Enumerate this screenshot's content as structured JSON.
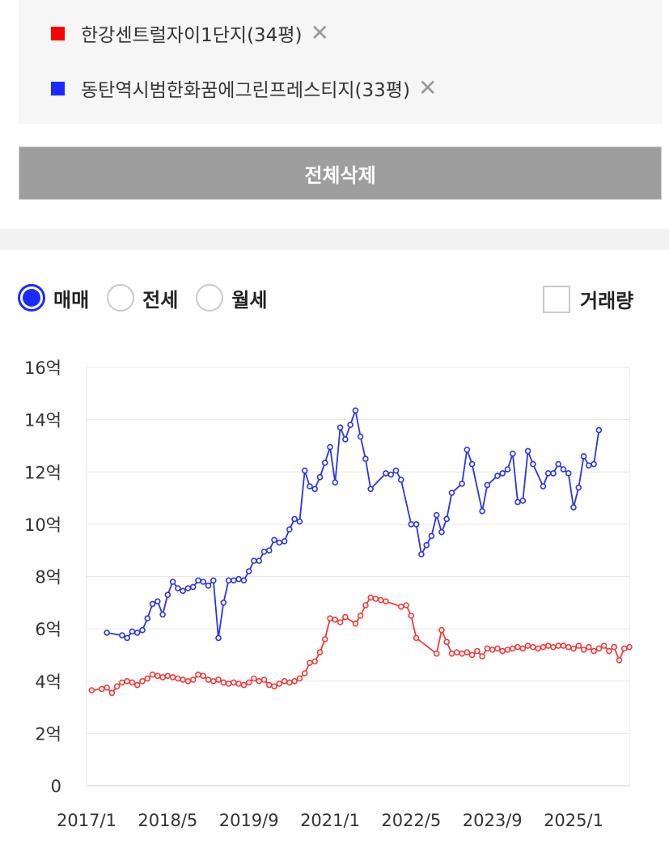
{
  "legend": {
    "items": [
      {
        "label": "한강센트럴자이1단지(34평)",
        "color": "#ff0000",
        "remove_icon": "close-icon",
        "remove_glyph": "✕"
      },
      {
        "label": "동탄역시범한화꿈에그린프레스티지(33평)",
        "color": "#1a2bff",
        "remove_icon": "close-icon",
        "remove_glyph": "✕"
      }
    ]
  },
  "delete_all_label": "전체삭제",
  "trade_types": {
    "options": [
      "매매",
      "전세",
      "월세"
    ],
    "selected": "매매"
  },
  "volume_label": "거래량",
  "volume_checked": false,
  "chart_data": {
    "type": "line",
    "title": "",
    "xlabel": "",
    "ylabel": "",
    "x_ticks": [
      "2017/1",
      "2018/5",
      "2019/9",
      "2021/1",
      "2022/5",
      "2023/9",
      "2025/1"
    ],
    "x_range": [
      "2017-01",
      "2025-12"
    ],
    "y_ticks": [
      "0",
      "2억",
      "4억",
      "6억",
      "8억",
      "10억",
      "12억",
      "14억",
      "16억"
    ],
    "ylim": [
      0,
      16
    ],
    "y_unit": "억",
    "grid": true,
    "series": [
      {
        "name": "한강센트럴자이1단지(34평)",
        "color": "#ef3b3b",
        "points": [
          [
            "2017-02",
            3.65
          ],
          [
            "2017-04",
            3.7
          ],
          [
            "2017-05",
            3.75
          ],
          [
            "2017-06",
            3.55
          ],
          [
            "2017-07",
            3.8
          ],
          [
            "2017-08",
            3.95
          ],
          [
            "2017-09",
            4.0
          ],
          [
            "2017-10",
            3.95
          ],
          [
            "2017-11",
            3.85
          ],
          [
            "2017-12",
            4.0
          ],
          [
            "2018-01",
            4.1
          ],
          [
            "2018-02",
            4.25
          ],
          [
            "2018-03",
            4.2
          ],
          [
            "2018-04",
            4.15
          ],
          [
            "2018-05",
            4.2
          ],
          [
            "2018-06",
            4.15
          ],
          [
            "2018-07",
            4.1
          ],
          [
            "2018-08",
            4.05
          ],
          [
            "2018-09",
            4.0
          ],
          [
            "2018-10",
            4.05
          ],
          [
            "2018-11",
            4.25
          ],
          [
            "2018-12",
            4.2
          ],
          [
            "2019-01",
            4.05
          ],
          [
            "2019-02",
            4.0
          ],
          [
            "2019-03",
            4.05
          ],
          [
            "2019-04",
            3.95
          ],
          [
            "2019-05",
            3.9
          ],
          [
            "2019-06",
            3.95
          ],
          [
            "2019-07",
            3.9
          ],
          [
            "2019-08",
            3.85
          ],
          [
            "2019-09",
            3.95
          ],
          [
            "2019-10",
            4.1
          ],
          [
            "2019-11",
            4.0
          ],
          [
            "2019-12",
            4.05
          ],
          [
            "2020-01",
            3.85
          ],
          [
            "2020-02",
            3.8
          ],
          [
            "2020-03",
            3.9
          ],
          [
            "2020-04",
            4.0
          ],
          [
            "2020-05",
            3.95
          ],
          [
            "2020-06",
            4.0
          ],
          [
            "2020-07",
            4.1
          ],
          [
            "2020-08",
            4.3
          ],
          [
            "2020-09",
            4.7
          ],
          [
            "2020-10",
            4.75
          ],
          [
            "2020-11",
            5.1
          ],
          [
            "2020-12",
            5.6
          ],
          [
            "2021-01",
            6.4
          ],
          [
            "2021-02",
            6.35
          ],
          [
            "2021-03",
            6.25
          ],
          [
            "2021-04",
            6.45
          ],
          [
            "2021-06",
            6.2
          ],
          [
            "2021-07",
            6.5
          ],
          [
            "2021-08",
            6.9
          ],
          [
            "2021-09",
            7.2
          ],
          [
            "2021-10",
            7.15
          ],
          [
            "2021-11",
            7.1
          ],
          [
            "2021-12",
            7.05
          ],
          [
            "2022-03",
            6.85
          ],
          [
            "2022-04",
            6.9
          ],
          [
            "2022-05",
            6.5
          ],
          [
            "2022-06",
            5.65
          ],
          [
            "2022-10",
            5.05
          ],
          [
            "2022-11",
            5.95
          ],
          [
            "2022-12",
            5.5
          ],
          [
            "2023-01",
            5.05
          ],
          [
            "2023-02",
            5.1
          ],
          [
            "2023-03",
            5.05
          ],
          [
            "2023-04",
            5.1
          ],
          [
            "2023-05",
            5.0
          ],
          [
            "2023-06",
            5.15
          ],
          [
            "2023-07",
            4.95
          ],
          [
            "2023-08",
            5.25
          ],
          [
            "2023-09",
            5.2
          ],
          [
            "2023-10",
            5.25
          ],
          [
            "2023-11",
            5.15
          ],
          [
            "2023-12",
            5.2
          ],
          [
            "2024-01",
            5.25
          ],
          [
            "2024-02",
            5.3
          ],
          [
            "2024-03",
            5.25
          ],
          [
            "2024-04",
            5.35
          ],
          [
            "2024-05",
            5.3
          ],
          [
            "2024-06",
            5.25
          ],
          [
            "2024-07",
            5.3
          ],
          [
            "2024-08",
            5.35
          ],
          [
            "2024-09",
            5.3
          ],
          [
            "2024-10",
            5.35
          ],
          [
            "2024-11",
            5.35
          ],
          [
            "2024-12",
            5.3
          ],
          [
            "2025-01",
            5.25
          ],
          [
            "2025-02",
            5.35
          ],
          [
            "2025-03",
            5.2
          ],
          [
            "2025-04",
            5.3
          ],
          [
            "2025-05",
            5.15
          ],
          [
            "2025-06",
            5.25
          ],
          [
            "2025-07",
            5.35
          ],
          [
            "2025-08",
            5.15
          ],
          [
            "2025-09",
            5.3
          ],
          [
            "2025-10",
            4.8
          ],
          [
            "2025-11",
            5.25
          ],
          [
            "2025-12",
            5.3
          ]
        ]
      },
      {
        "name": "동탄역시범한화꿈에그린프레스티지(33평)",
        "color": "#2b34e0",
        "points": [
          [
            "2017-05",
            5.85
          ],
          [
            "2017-08",
            5.75
          ],
          [
            "2017-09",
            5.65
          ],
          [
            "2017-10",
            5.9
          ],
          [
            "2017-11",
            5.85
          ],
          [
            "2017-12",
            5.95
          ],
          [
            "2018-01",
            6.4
          ],
          [
            "2018-02",
            6.95
          ],
          [
            "2018-03",
            7.05
          ],
          [
            "2018-04",
            6.55
          ],
          [
            "2018-05",
            7.3
          ],
          [
            "2018-06",
            7.8
          ],
          [
            "2018-07",
            7.55
          ],
          [
            "2018-08",
            7.45
          ],
          [
            "2018-09",
            7.55
          ],
          [
            "2018-10",
            7.6
          ],
          [
            "2018-11",
            7.85
          ],
          [
            "2018-12",
            7.8
          ],
          [
            "2019-01",
            7.65
          ],
          [
            "2019-02",
            7.85
          ],
          [
            "2019-03",
            5.65
          ],
          [
            "2019-04",
            7.0
          ],
          [
            "2019-05",
            7.85
          ],
          [
            "2019-06",
            7.85
          ],
          [
            "2019-07",
            7.9
          ],
          [
            "2019-08",
            7.85
          ],
          [
            "2019-09",
            8.2
          ],
          [
            "2019-10",
            8.6
          ],
          [
            "2019-11",
            8.6
          ],
          [
            "2019-12",
            8.95
          ],
          [
            "2020-01",
            9.0
          ],
          [
            "2020-02",
            9.4
          ],
          [
            "2020-03",
            9.3
          ],
          [
            "2020-04",
            9.35
          ],
          [
            "2020-05",
            9.8
          ],
          [
            "2020-06",
            10.2
          ],
          [
            "2020-07",
            10.1
          ],
          [
            "2020-08",
            12.05
          ],
          [
            "2020-09",
            11.45
          ],
          [
            "2020-10",
            11.35
          ],
          [
            "2020-11",
            11.8
          ],
          [
            "2020-12",
            12.35
          ],
          [
            "2021-01",
            12.95
          ],
          [
            "2021-02",
            11.6
          ],
          [
            "2021-03",
            13.7
          ],
          [
            "2021-04",
            13.25
          ],
          [
            "2021-05",
            13.8
          ],
          [
            "2021-06",
            14.35
          ],
          [
            "2021-07",
            13.35
          ],
          [
            "2021-08",
            12.5
          ],
          [
            "2021-09",
            11.35
          ],
          [
            "2021-12",
            11.95
          ],
          [
            "2022-01",
            11.9
          ],
          [
            "2022-02",
            12.05
          ],
          [
            "2022-03",
            11.7
          ],
          [
            "2022-05",
            10.0
          ],
          [
            "2022-06",
            10.0
          ],
          [
            "2022-07",
            8.85
          ],
          [
            "2022-08",
            9.2
          ],
          [
            "2022-09",
            9.55
          ],
          [
            "2022-10",
            10.35
          ],
          [
            "2022-11",
            9.7
          ],
          [
            "2022-12",
            10.2
          ],
          [
            "2023-01",
            11.2
          ],
          [
            "2023-03",
            11.55
          ],
          [
            "2023-04",
            12.85
          ],
          [
            "2023-05",
            12.3
          ],
          [
            "2023-07",
            10.5
          ],
          [
            "2023-08",
            11.5
          ],
          [
            "2023-10",
            11.85
          ],
          [
            "2023-11",
            11.95
          ],
          [
            "2023-12",
            12.1
          ],
          [
            "2024-01",
            12.7
          ],
          [
            "2024-02",
            10.85
          ],
          [
            "2024-03",
            10.9
          ],
          [
            "2024-04",
            12.8
          ],
          [
            "2024-05",
            12.3
          ],
          [
            "2024-07",
            11.45
          ],
          [
            "2024-08",
            11.95
          ],
          [
            "2024-09",
            11.95
          ],
          [
            "2024-10",
            12.3
          ],
          [
            "2024-11",
            12.1
          ],
          [
            "2024-12",
            11.95
          ],
          [
            "2025-01",
            10.65
          ],
          [
            "2025-02",
            11.4
          ],
          [
            "2025-03",
            12.6
          ],
          [
            "2025-04",
            12.25
          ],
          [
            "2025-05",
            12.3
          ],
          [
            "2025-06",
            13.6
          ]
        ]
      }
    ]
  }
}
